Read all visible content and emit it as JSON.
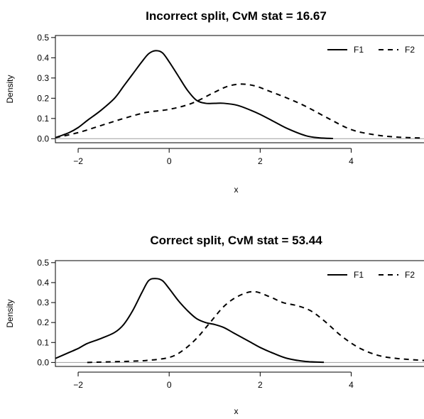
{
  "chart_data": [
    {
      "type": "line",
      "title": "Incorrect split, CvM stat = 16.67",
      "xlabel": "x",
      "ylabel": "Density",
      "xlim": [
        -2.5,
        5.6
      ],
      "ylim": [
        -0.02,
        0.51
      ],
      "xticks": [
        -2,
        0,
        2,
        4
      ],
      "xtick_labels": [
        "−2",
        "0",
        "2",
        "4"
      ],
      "yticks": [
        0.0,
        0.1,
        0.2,
        0.3,
        0.4,
        0.5
      ],
      "ytick_labels": [
        "0.0",
        "0.1",
        "0.2",
        "0.3",
        "0.4",
        "0.5"
      ],
      "baseline": 0,
      "legend_position": "top-right",
      "series": [
        {
          "name": "F1",
          "line_style": "solid",
          "x": [
            -2.5,
            -2.2,
            -2.0,
            -1.8,
            -1.5,
            -1.2,
            -1.0,
            -0.8,
            -0.6,
            -0.45,
            -0.3,
            -0.15,
            0.0,
            0.2,
            0.4,
            0.6,
            0.8,
            1.0,
            1.2,
            1.5,
            1.8,
            2.0,
            2.3,
            2.6,
            3.0,
            3.3,
            3.6
          ],
          "y": [
            0.005,
            0.03,
            0.055,
            0.09,
            0.14,
            0.2,
            0.26,
            0.32,
            0.38,
            0.42,
            0.435,
            0.425,
            0.38,
            0.31,
            0.24,
            0.19,
            0.175,
            0.175,
            0.175,
            0.165,
            0.14,
            0.12,
            0.085,
            0.05,
            0.015,
            0.004,
            0.001
          ]
        },
        {
          "name": "F2",
          "line_style": "dashed",
          "x": [
            -2.5,
            -2.0,
            -1.5,
            -1.0,
            -0.5,
            0.0,
            0.5,
            1.0,
            1.3,
            1.6,
            1.9,
            2.2,
            2.6,
            3.0,
            3.5,
            4.0,
            4.5,
            5.0,
            5.6
          ],
          "y": [
            0.005,
            0.03,
            0.065,
            0.1,
            0.13,
            0.145,
            0.175,
            0.23,
            0.26,
            0.27,
            0.26,
            0.235,
            0.2,
            0.16,
            0.1,
            0.045,
            0.02,
            0.008,
            0.003
          ]
        }
      ]
    },
    {
      "type": "line",
      "title": "Correct split, CvM stat = 53.44",
      "xlabel": "x",
      "ylabel": "Density",
      "xlim": [
        -2.5,
        5.6
      ],
      "ylim": [
        -0.02,
        0.51
      ],
      "xticks": [
        -2,
        0,
        2,
        4
      ],
      "xtick_labels": [
        "−2",
        "0",
        "2",
        "4"
      ],
      "yticks": [
        0.0,
        0.1,
        0.2,
        0.3,
        0.4,
        0.5
      ],
      "ytick_labels": [
        "0.0",
        "0.1",
        "0.2",
        "0.3",
        "0.4",
        "0.5"
      ],
      "baseline": 0,
      "legend_position": "top-right",
      "series": [
        {
          "name": "F1",
          "line_style": "solid",
          "x": [
            -2.5,
            -2.2,
            -2.0,
            -1.8,
            -1.5,
            -1.2,
            -1.0,
            -0.8,
            -0.6,
            -0.45,
            -0.3,
            -0.15,
            0.0,
            0.2,
            0.4,
            0.6,
            0.8,
            1.0,
            1.2,
            1.4,
            1.6,
            1.8,
            2.0,
            2.3,
            2.6,
            3.0,
            3.4
          ],
          "y": [
            0.02,
            0.05,
            0.07,
            0.095,
            0.12,
            0.15,
            0.19,
            0.26,
            0.35,
            0.41,
            0.42,
            0.41,
            0.37,
            0.31,
            0.26,
            0.22,
            0.2,
            0.19,
            0.175,
            0.15,
            0.125,
            0.1,
            0.075,
            0.045,
            0.02,
            0.005,
            0.001
          ]
        },
        {
          "name": "F2",
          "line_style": "dashed",
          "x": [
            -1.8,
            -1.5,
            -1.0,
            -0.5,
            0.0,
            0.3,
            0.6,
            0.9,
            1.2,
            1.5,
            1.85,
            2.2,
            2.5,
            2.8,
            3.1,
            3.4,
            3.8,
            4.2,
            4.6,
            5.0,
            5.6
          ],
          "y": [
            0.0,
            0.002,
            0.005,
            0.01,
            0.025,
            0.06,
            0.12,
            0.2,
            0.28,
            0.33,
            0.355,
            0.33,
            0.3,
            0.285,
            0.26,
            0.21,
            0.13,
            0.07,
            0.035,
            0.02,
            0.01
          ]
        }
      ]
    }
  ]
}
